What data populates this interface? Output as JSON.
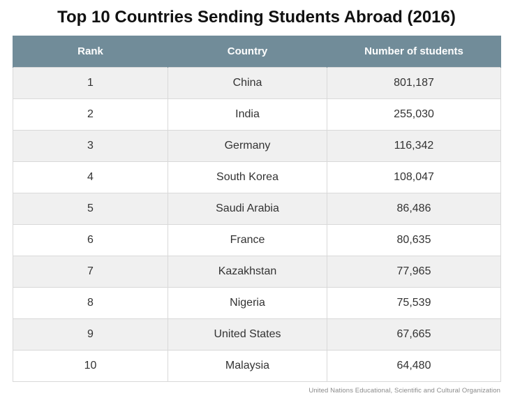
{
  "title": "Top 10 Countries Sending Students Abroad (2016)",
  "source": "United Nations Educational, Scientific and Cultural Organization",
  "colors": {
    "header_bg": "#718c99",
    "header_text": "#ffffff",
    "row_odd": "#f0f0f0",
    "row_even": "#ffffff"
  },
  "chart_data": {
    "type": "table",
    "title": "Top 10 Countries Sending Students Abroad (2016)",
    "columns": [
      "Rank",
      "Country",
      "Number of students"
    ],
    "rows": [
      [
        "1",
        "China",
        "801,187"
      ],
      [
        "2",
        "India",
        "255,030"
      ],
      [
        "3",
        "Germany",
        "116,342"
      ],
      [
        "4",
        "South Korea",
        "108,047"
      ],
      [
        "5",
        "Saudi Arabia",
        "86,486"
      ],
      [
        "6",
        "France",
        "80,635"
      ],
      [
        "7",
        "Kazakhstan",
        "77,965"
      ],
      [
        "8",
        "Nigeria",
        "75,539"
      ],
      [
        "9",
        "United States",
        "67,665"
      ],
      [
        "10",
        "Malaysia",
        "64,480"
      ]
    ]
  }
}
